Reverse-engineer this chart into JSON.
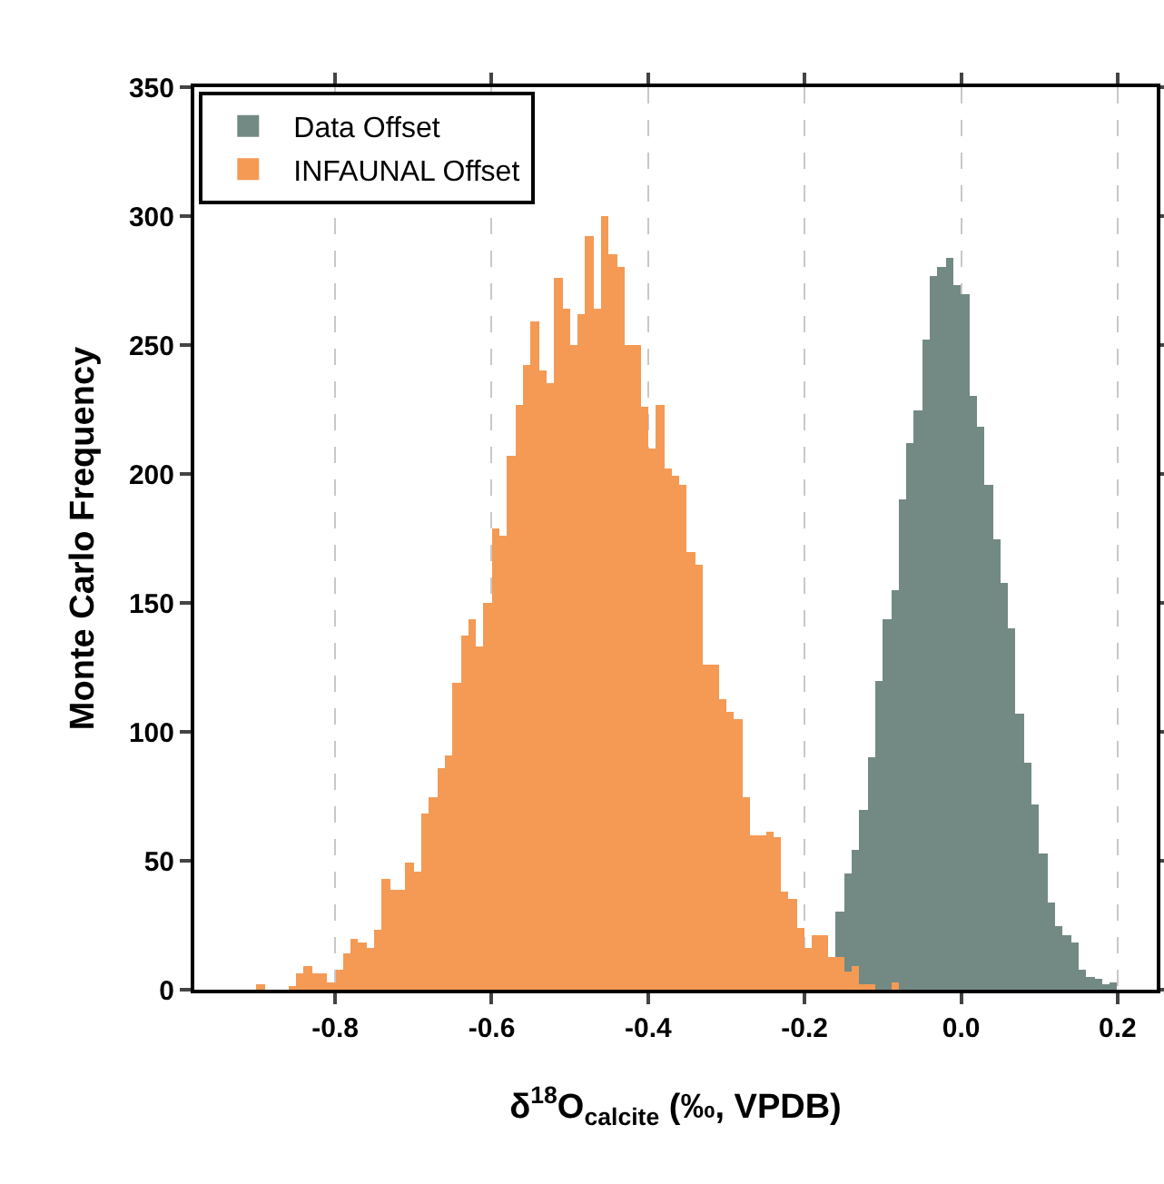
{
  "chart_data": {
    "type": "histogram",
    "xlabel": "δ$^{18}$O$_{calcite}$ (‰, VPDB)",
    "ylabel": "Monte Carlo Frequency",
    "xlim": [
      -0.98,
      0.25
    ],
    "ylim": [
      0,
      350
    ],
    "xticks": [
      -0.8,
      -0.6,
      -0.4,
      -0.2,
      {
        "value": 0,
        "label": "0.0"
      },
      0.2
    ],
    "yticks": [
      0,
      50,
      100,
      150,
      200,
      250,
      300,
      350
    ],
    "grid": "x",
    "legend": "top left",
    "bins": [
      -0.9,
      -0.89,
      -0.88,
      -0.87,
      -0.86,
      -0.85,
      -0.84,
      -0.83,
      -0.82,
      -0.81,
      -0.8,
      -0.79,
      -0.78,
      -0.77,
      -0.76,
      -0.75,
      -0.74,
      -0.73,
      -0.72,
      -0.71,
      -0.7,
      -0.69,
      -0.68,
      -0.67,
      -0.66,
      -0.65,
      -0.64,
      -0.63,
      -0.62,
      -0.61,
      -0.6,
      -0.59,
      -0.58,
      -0.57,
      -0.56,
      -0.55,
      -0.54,
      -0.53,
      -0.52,
      -0.51,
      -0.5,
      -0.49,
      -0.48,
      -0.47,
      -0.46,
      -0.45,
      -0.44,
      -0.43,
      -0.42,
      -0.41,
      -0.4,
      -0.39,
      -0.38,
      -0.37,
      -0.36,
      -0.35,
      -0.34,
      -0.33,
      -0.32,
      -0.31,
      -0.3,
      -0.29,
      -0.28,
      -0.27,
      -0.26,
      -0.25,
      -0.24,
      -0.23,
      -0.22,
      -0.21,
      -0.2,
      -0.19,
      -0.18,
      -0.17,
      -0.16,
      -0.15,
      -0.14,
      -0.13,
      -0.12,
      -0.11,
      -0.1,
      -0.09,
      -0.08,
      -0.07,
      -0.06,
      -0.05,
      -0.04,
      -0.03,
      -0.02,
      -0.01,
      0,
      0.01,
      0.02,
      0.03,
      0.04,
      0.05,
      0.06,
      0.07,
      0.08,
      0.09,
      0.1,
      0.11,
      0.12,
      0.13,
      0.14,
      0.15,
      0.16,
      0.17,
      0.18,
      0.19,
      0.2
    ],
    "series": [
      {
        "name": "Data Offset",
        "color": "#728a83",
        "values": [
          null,
          null,
          null,
          null,
          null,
          null,
          null,
          null,
          null,
          null,
          null,
          null,
          null,
          null,
          null,
          null,
          null,
          null,
          null,
          null,
          null,
          null,
          null,
          null,
          null,
          null,
          null,
          null,
          null,
          null,
          null,
          null,
          null,
          null,
          null,
          null,
          null,
          null,
          null,
          null,
          null,
          null,
          null,
          null,
          null,
          null,
          null,
          null,
          null,
          null,
          null,
          null,
          null,
          null,
          null,
          null,
          null,
          null,
          null,
          null,
          null,
          null,
          null,
          null,
          null,
          null,
          null,
          null,
          null,
          null,
          null,
          null,
          null,
          null,
          30,
          45,
          54,
          70,
          90,
          120,
          144,
          155,
          190,
          212,
          225,
          252,
          277,
          280,
          284,
          273,
          270,
          230,
          218,
          196,
          175,
          158,
          140,
          107,
          88,
          72,
          53,
          34,
          25,
          21,
          18,
          8,
          5,
          4,
          2,
          3
        ]
      },
      {
        "name": "INFAUNAL Offset",
        "color": "#f49a55",
        "values": [
          2,
          0,
          0,
          0,
          1,
          6,
          9,
          6,
          6,
          3,
          8,
          14,
          20,
          18,
          16,
          23,
          43,
          39,
          39,
          49,
          46,
          68,
          75,
          86,
          91,
          119,
          137,
          144,
          133,
          150,
          179,
          176,
          207,
          227,
          242,
          259,
          240,
          235,
          276,
          264,
          250,
          262,
          292,
          264,
          300,
          285,
          280,
          250,
          250,
          226,
          210,
          227,
          202,
          199,
          196,
          170,
          165,
          126,
          126,
          113,
          108,
          105,
          75,
          60,
          60,
          61,
          59,
          38,
          35,
          24,
          16,
          21,
          21,
          13,
          13,
          7,
          9,
          2,
          2,
          0,
          0,
          3,
          null,
          null,
          null,
          null,
          null,
          null,
          null,
          null,
          null,
          null,
          null,
          null,
          null,
          null,
          null,
          null,
          null,
          null,
          null,
          null,
          null,
          null,
          null,
          null,
          null,
          null,
          null,
          null
        ]
      }
    ]
  }
}
